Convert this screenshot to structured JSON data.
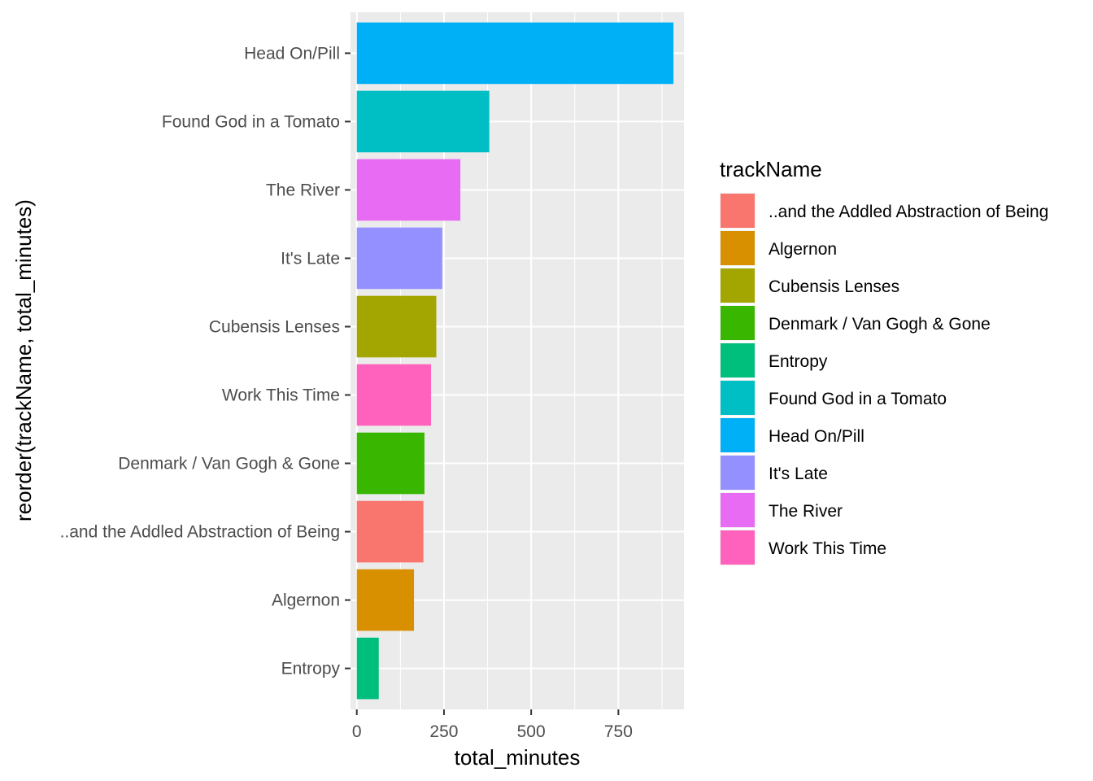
{
  "chart_data": {
    "type": "bar",
    "orientation": "horizontal",
    "xlabel": "total_minutes",
    "ylabel": "reorder(trackName, total_minutes)",
    "xlim": [
      -18,
      938
    ],
    "x_ticks": [
      0,
      250,
      500,
      750
    ],
    "x_tick_labels": [
      "0",
      "250",
      "500",
      "750"
    ],
    "grid": true,
    "legend_position": "right",
    "legend_title": "trackName",
    "bars": [
      {
        "category": "Head On/Pill",
        "value": 908,
        "color": "#00B0F6"
      },
      {
        "category": "Found God in a Tomato",
        "value": 380,
        "color": "#00BFC4"
      },
      {
        "category": "The River",
        "value": 297,
        "color": "#E76BF3"
      },
      {
        "category": "It's Late",
        "value": 245,
        "color": "#9590FF"
      },
      {
        "category": "Cubensis Lenses",
        "value": 228,
        "color": "#A3A500"
      },
      {
        "category": "Work This Time",
        "value": 213,
        "color": "#FF62BC"
      },
      {
        "category": "Denmark / Van Gogh & Gone",
        "value": 194,
        "color": "#39B600"
      },
      {
        "category": "..and the Addled Abstraction of Being",
        "value": 191,
        "color": "#F8766D"
      },
      {
        "category": "Algernon",
        "value": 164,
        "color": "#D89000"
      },
      {
        "category": "Entropy",
        "value": 63,
        "color": "#00BF7D"
      }
    ],
    "legend": [
      {
        "label": "..and the Addled Abstraction of Being",
        "color": "#F8766D"
      },
      {
        "label": "Algernon",
        "color": "#D89000"
      },
      {
        "label": "Cubensis Lenses",
        "color": "#A3A500"
      },
      {
        "label": "Denmark / Van Gogh & Gone",
        "color": "#39B600"
      },
      {
        "label": "Entropy",
        "color": "#00BF7D"
      },
      {
        "label": "Found God in a Tomato",
        "color": "#00BFC4"
      },
      {
        "label": "Head On/Pill",
        "color": "#00B0F6"
      },
      {
        "label": "It's Late",
        "color": "#9590FF"
      },
      {
        "label": "The River",
        "color": "#E76BF3"
      },
      {
        "label": "Work This Time",
        "color": "#FF62BC"
      }
    ]
  }
}
